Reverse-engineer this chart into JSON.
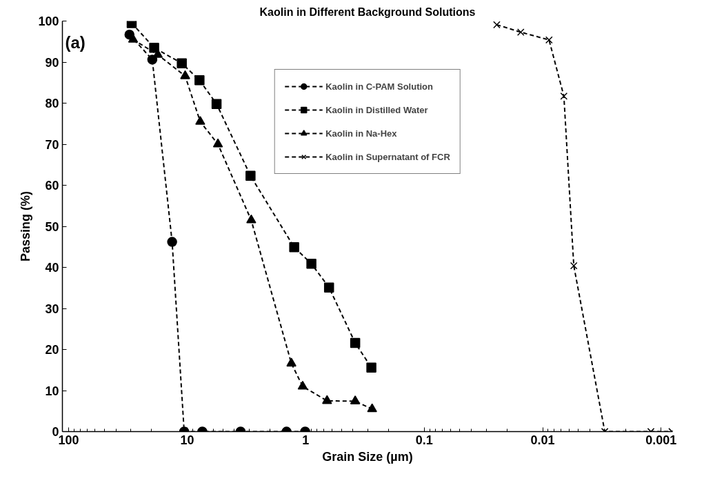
{
  "chart_data": {
    "type": "line",
    "title": "Kaolin in Different Background Solutions",
    "xlabel": "Grain Size (µm)",
    "ylabel": "Passing (%)",
    "annotations": [
      "(a)"
    ],
    "log": "x",
    "xlim": [
      113,
      0.0008
    ],
    "xticks": [
      100,
      10,
      1,
      0.1,
      0.01,
      0.001
    ],
    "ylim": [
      0,
      100
    ],
    "yticks": [
      0,
      10,
      20,
      30,
      40,
      50,
      60,
      70,
      80,
      90,
      100
    ],
    "grid": false,
    "legend": "top",
    "line_style": "dashed",
    "series": [
      {
        "name": "Kaolin in C-PAM Solution",
        "color": "#000000",
        "marker": "circle",
        "x": [
          30.7,
          19.7,
          13.4,
          10.6,
          7.45,
          3.54,
          1.45,
          1.01
        ],
        "values": [
          96.7,
          90.6,
          46.2,
          0,
          0,
          0,
          0,
          0
        ]
      },
      {
        "name": "Kaolin in Distilled Water",
        "color": "#000000",
        "marker": "square",
        "x": [
          29.4,
          19.0,
          11.1,
          7.87,
          5.65,
          2.92,
          1.25,
          0.895,
          0.635,
          0.382,
          0.279
        ],
        "values": [
          99.5,
          93.5,
          89.7,
          85.6,
          79.8,
          62.3,
          44.9,
          40.9,
          35.1,
          21.6,
          15.6
        ]
      },
      {
        "name": "Kaolin in Na-Hex",
        "color": "#000000",
        "marker": "triangle",
        "x": [
          28.6,
          17.7,
          10.4,
          7.76,
          5.5,
          2.88,
          1.32,
          1.06,
          0.66,
          0.382,
          0.275
        ],
        "values": [
          95.5,
          91.8,
          86.6,
          75.5,
          70,
          51.5,
          16.6,
          11,
          7.5,
          7.4,
          5.5
        ]
      },
      {
        "name": "Kaolin in Supernatant of FCR",
        "color": "#000000",
        "marker": "cross",
        "x": [
          0.0244,
          0.0153,
          0.00883,
          0.00662,
          0.00546,
          0.00299,
          0.00122,
          0.00081
        ],
        "values": [
          99.1,
          97.3,
          95.4,
          81.7,
          40.4,
          0,
          0,
          0
        ]
      }
    ]
  }
}
